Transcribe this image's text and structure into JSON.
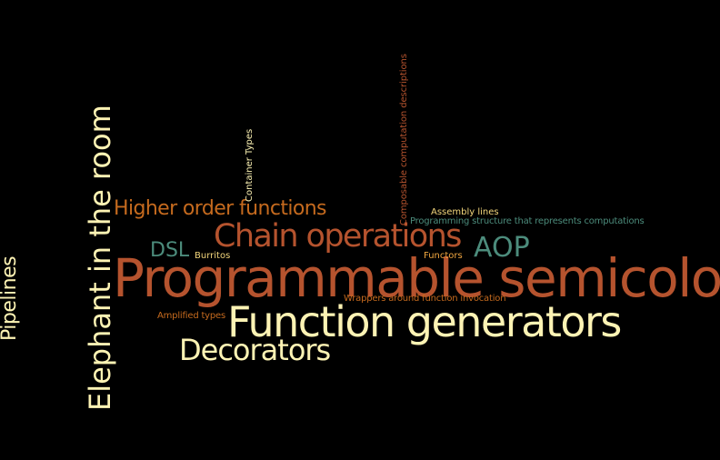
{
  "palette": {
    "background": "#000000",
    "rust": "#b5532e",
    "orange": "#c56a1e",
    "cream": "#fdf3b4",
    "teal": "#4c8c7c",
    "light_orange": "#f0a640",
    "gold": "#f2d57b"
  },
  "words": [
    {
      "id": "programmable-semicolons",
      "text": "Programmable semicolons",
      "color": "rust",
      "orientation": "horizontal"
    },
    {
      "id": "function-generators",
      "text": "Function generators",
      "color": "cream",
      "orientation": "horizontal"
    },
    {
      "id": "elephant-in-the-room",
      "text": "Elephant in the room",
      "color": "cream",
      "orientation": "vertical"
    },
    {
      "id": "chain-operations",
      "text": "Chain operations",
      "color": "rust",
      "orientation": "horizontal"
    },
    {
      "id": "decorators",
      "text": "Decorators",
      "color": "cream",
      "orientation": "horizontal"
    },
    {
      "id": "higher-order-functions",
      "text": "Higher order functions",
      "color": "orange",
      "orientation": "horizontal"
    },
    {
      "id": "aop",
      "text": "AOP",
      "color": "teal",
      "orientation": "horizontal"
    },
    {
      "id": "dsl",
      "text": "DSL",
      "color": "teal",
      "orientation": "horizontal"
    },
    {
      "id": "pipelines",
      "text": "Pipelines",
      "color": "cream",
      "orientation": "vertical"
    },
    {
      "id": "composable-computation-descriptions",
      "text": "Composable computation descriptions",
      "color": "rust",
      "orientation": "vertical"
    },
    {
      "id": "container-types",
      "text": "Container Types",
      "color": "cream",
      "orientation": "vertical"
    },
    {
      "id": "assembly-lines",
      "text": "Assembly lines",
      "color": "gold",
      "orientation": "horizontal"
    },
    {
      "id": "programming-structure",
      "text": "Programming structure that represents computations",
      "color": "teal",
      "orientation": "horizontal"
    },
    {
      "id": "burritos",
      "text": "Burritos",
      "color": "gold",
      "orientation": "horizontal"
    },
    {
      "id": "functors",
      "text": "Functors",
      "color": "light_orange",
      "orientation": "horizontal"
    },
    {
      "id": "wrappers-around-function-invocation",
      "text": "Wrappers around function invocation",
      "color": "orange",
      "orientation": "horizontal"
    },
    {
      "id": "amplified-types",
      "text": "Amplified types",
      "color": "orange",
      "orientation": "horizontal"
    }
  ]
}
